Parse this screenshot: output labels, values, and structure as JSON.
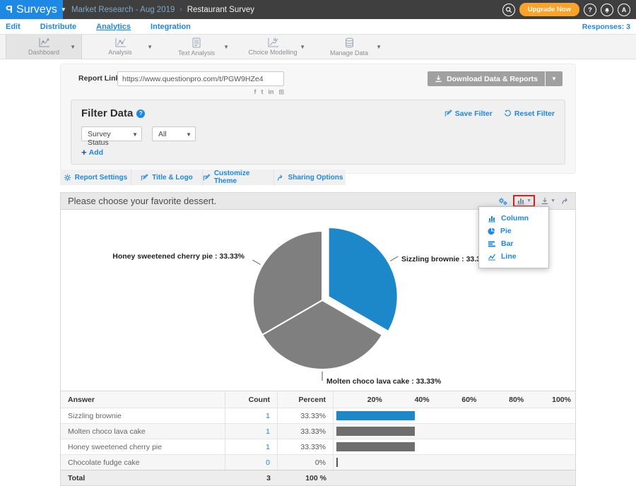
{
  "topbar": {
    "logo_letter": "P",
    "product": "Surveys",
    "breadcrumb": {
      "parent": "Market Research - Aug 2019",
      "separator": "›",
      "current": "Restaurant Survey"
    },
    "upgrade_label": "Upgrade Now",
    "help_label": "?",
    "avatar_letter": "A"
  },
  "nav": {
    "items": [
      {
        "label": "Edit"
      },
      {
        "label": "Distribute"
      },
      {
        "label": "Analytics"
      },
      {
        "label": "Integration"
      }
    ],
    "active": "Analytics",
    "responses_label": "Responses: 3"
  },
  "toolbar": {
    "items": [
      {
        "label": "Dashboard"
      },
      {
        "label": "Analysis"
      },
      {
        "label": "Text Analysis"
      },
      {
        "label": "Choice Modelling"
      },
      {
        "label": "Manage Data"
      }
    ],
    "active": "Dashboard"
  },
  "report": {
    "link_label": "Report Link",
    "link_value": "https://www.questionpro.com/t/PGW9HZe4",
    "download_label": "Download Data & Reports",
    "social": [
      "facebook",
      "twitter",
      "linkedin",
      "embed"
    ]
  },
  "filter": {
    "title": "Filter Data",
    "help": "?",
    "save_label": "Save Filter",
    "reset_label": "Reset Filter",
    "select1_value": "Survey Status",
    "select2_value": "All",
    "add_label": "Add",
    "add_plus": "+"
  },
  "tabs": [
    {
      "label": "Report Settings"
    },
    {
      "label": "Title & Logo"
    },
    {
      "label": "Customize Theme"
    },
    {
      "label": "Sharing Options"
    }
  ],
  "chart": {
    "title": "Please choose your favorite dessert.",
    "menu": [
      {
        "label": "Column"
      },
      {
        "label": "Pie"
      },
      {
        "label": "Bar"
      },
      {
        "label": "Line"
      }
    ]
  },
  "chart_data": {
    "type": "pie",
    "title": "Please choose your favorite dessert.",
    "labels": [
      "Sizzling brownie",
      "Molten choco lava cake",
      "Honey sweetened cherry pie"
    ],
    "values": [
      33.33,
      33.33,
      33.33
    ],
    "counts": [
      1,
      1,
      1
    ],
    "colors": [
      "#1c87c9",
      "#7f7f7f",
      "#7f7f7f"
    ],
    "point_labels": [
      "Sizzling brownie : 33.33%",
      "Molten choco lava cake : 33.33%",
      "Honey sweetened cherry pie : 33.33%"
    ],
    "exploded_index": 0,
    "start_angle_deg": 0,
    "legend": "none",
    "slice_border_color": "#ffffff"
  },
  "table": {
    "headers": {
      "answer": "Answer",
      "count": "Count",
      "percent": "Percent"
    },
    "scale_ticks": [
      "20%",
      "40%",
      "60%",
      "80%",
      "100%"
    ],
    "rows": [
      {
        "answer": "Sizzling brownie",
        "count": "1",
        "percent": "33.33%",
        "bar_pct": 33.33,
        "bar_color": "#1c87c9"
      },
      {
        "answer": "Molten choco lava cake",
        "count": "1",
        "percent": "33.33%",
        "bar_pct": 33.33,
        "bar_color": "#6e6e6e"
      },
      {
        "answer": "Honey sweetened cherry pie",
        "count": "1",
        "percent": "33.33%",
        "bar_pct": 33.33,
        "bar_color": "#6e6e6e"
      },
      {
        "answer": "Chocolate fudge cake",
        "count": "0",
        "percent": "0%",
        "bar_pct": 0,
        "bar_color": "#555555"
      }
    ],
    "total": {
      "answer": "Total",
      "count": "3",
      "percent": "100 %"
    }
  }
}
